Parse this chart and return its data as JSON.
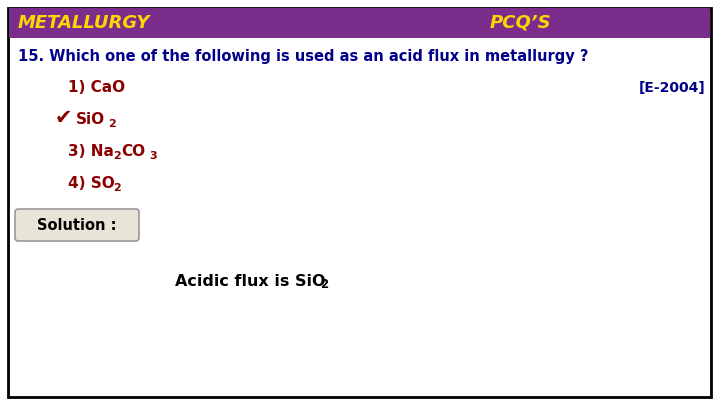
{
  "title_left": "METALLURGY",
  "title_right": "PCQ’S",
  "header_bg": "#7B2D8B",
  "header_text_color": "#FFD700",
  "question": "15. Which one of the following is used as an acid flux in metallurgy ?",
  "question_color": "#00008B",
  "year_ref": "[E-2004]",
  "year_color": "#00008B",
  "option_color": "#8B0000",
  "checkmark_color": "#8B0000",
  "solution_label": "Solution :",
  "bg_color": "#FFFFFF",
  "border_color": "#000000",
  "outer_bg": "#FFFFFF"
}
